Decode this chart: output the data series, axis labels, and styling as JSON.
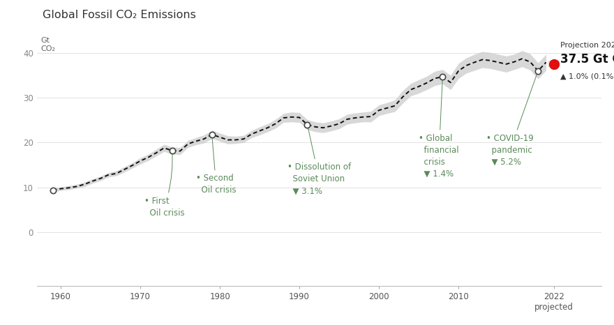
{
  "title": "Global Fossil CO₂ Emissions",
  "background_color": "#ffffff",
  "line_color": "#111111",
  "band_color": "#cccccc",
  "annotation_color": "#5a8a5a",
  "years": [
    1959,
    1960,
    1961,
    1962,
    1963,
    1964,
    1965,
    1966,
    1967,
    1968,
    1969,
    1970,
    1971,
    1972,
    1973,
    1974,
    1975,
    1976,
    1977,
    1978,
    1979,
    1980,
    1981,
    1982,
    1983,
    1984,
    1985,
    1986,
    1987,
    1988,
    1989,
    1990,
    1991,
    1992,
    1993,
    1994,
    1995,
    1996,
    1997,
    1998,
    1999,
    2000,
    2001,
    2002,
    2003,
    2004,
    2005,
    2006,
    2007,
    2008,
    2009,
    2010,
    2011,
    2012,
    2013,
    2014,
    2015,
    2016,
    2017,
    2018,
    2019,
    2020,
    2021,
    2022
  ],
  "values": [
    9.4,
    9.7,
    9.9,
    10.2,
    10.7,
    11.4,
    12.0,
    12.8,
    13.1,
    14.0,
    14.9,
    15.9,
    16.7,
    17.7,
    18.8,
    18.2,
    18.1,
    19.7,
    20.3,
    20.8,
    21.8,
    21.2,
    20.6,
    20.6,
    20.8,
    21.9,
    22.6,
    23.3,
    24.2,
    25.5,
    25.7,
    25.6,
    24.0,
    23.5,
    23.3,
    23.7,
    24.2,
    25.2,
    25.5,
    25.7,
    25.8,
    27.2,
    27.7,
    28.2,
    30.2,
    31.8,
    32.5,
    33.3,
    34.3,
    34.7,
    33.4,
    36.0,
    37.2,
    37.9,
    38.5,
    38.3,
    37.9,
    37.5,
    38.0,
    38.7,
    38.0,
    36.0,
    37.9,
    37.5
  ],
  "band_upper": [
    9.8,
    10.1,
    10.4,
    10.7,
    11.2,
    11.9,
    12.5,
    13.3,
    13.7,
    14.6,
    15.5,
    16.6,
    17.4,
    18.5,
    19.6,
    19.0,
    18.9,
    20.5,
    21.1,
    21.7,
    22.7,
    22.1,
    21.5,
    21.4,
    21.6,
    22.7,
    23.5,
    24.2,
    25.2,
    26.5,
    26.8,
    26.7,
    25.1,
    24.6,
    24.4,
    24.8,
    25.3,
    26.3,
    26.6,
    26.8,
    27.0,
    28.4,
    28.9,
    29.5,
    31.6,
    33.2,
    34.0,
    34.8,
    35.9,
    36.3,
    35.0,
    37.7,
    38.9,
    39.7,
    40.3,
    40.1,
    39.7,
    39.3,
    39.7,
    40.5,
    39.8,
    37.8,
    39.7,
    38.2
  ],
  "band_lower": [
    9.0,
    9.3,
    9.5,
    9.8,
    10.2,
    10.9,
    11.5,
    12.3,
    12.6,
    13.4,
    14.3,
    15.2,
    16.0,
    17.0,
    18.0,
    17.4,
    17.3,
    18.9,
    19.5,
    19.9,
    20.9,
    20.3,
    19.7,
    19.8,
    20.0,
    21.1,
    21.7,
    22.4,
    23.2,
    24.5,
    24.6,
    24.5,
    22.9,
    22.4,
    22.2,
    22.6,
    23.1,
    24.1,
    24.4,
    24.6,
    24.6,
    26.0,
    26.5,
    26.9,
    28.8,
    30.4,
    31.0,
    31.8,
    32.7,
    33.1,
    31.8,
    34.3,
    35.5,
    36.1,
    36.7,
    36.5,
    36.1,
    35.7,
    36.3,
    36.9,
    36.2,
    34.2,
    36.1,
    36.8
  ],
  "white_dot_years": [
    1959,
    1974,
    1979,
    1991,
    2008,
    2020
  ],
  "white_dot_values": [
    9.4,
    18.2,
    21.8,
    24.0,
    34.7,
    36.0
  ],
  "red_dot_year": 2022,
  "red_dot_value": 37.5,
  "red_band_upper": 38.2,
  "red_band_lower": 36.8,
  "y_lim_bottom": -12,
  "y_lim_top": 46,
  "x_lim_left": 1957,
  "x_lim_right": 2028,
  "y_ticks": [
    0,
    10,
    20,
    30,
    40
  ],
  "x_ticks": [
    1960,
    1970,
    1980,
    1990,
    2000,
    2010,
    2022
  ]
}
